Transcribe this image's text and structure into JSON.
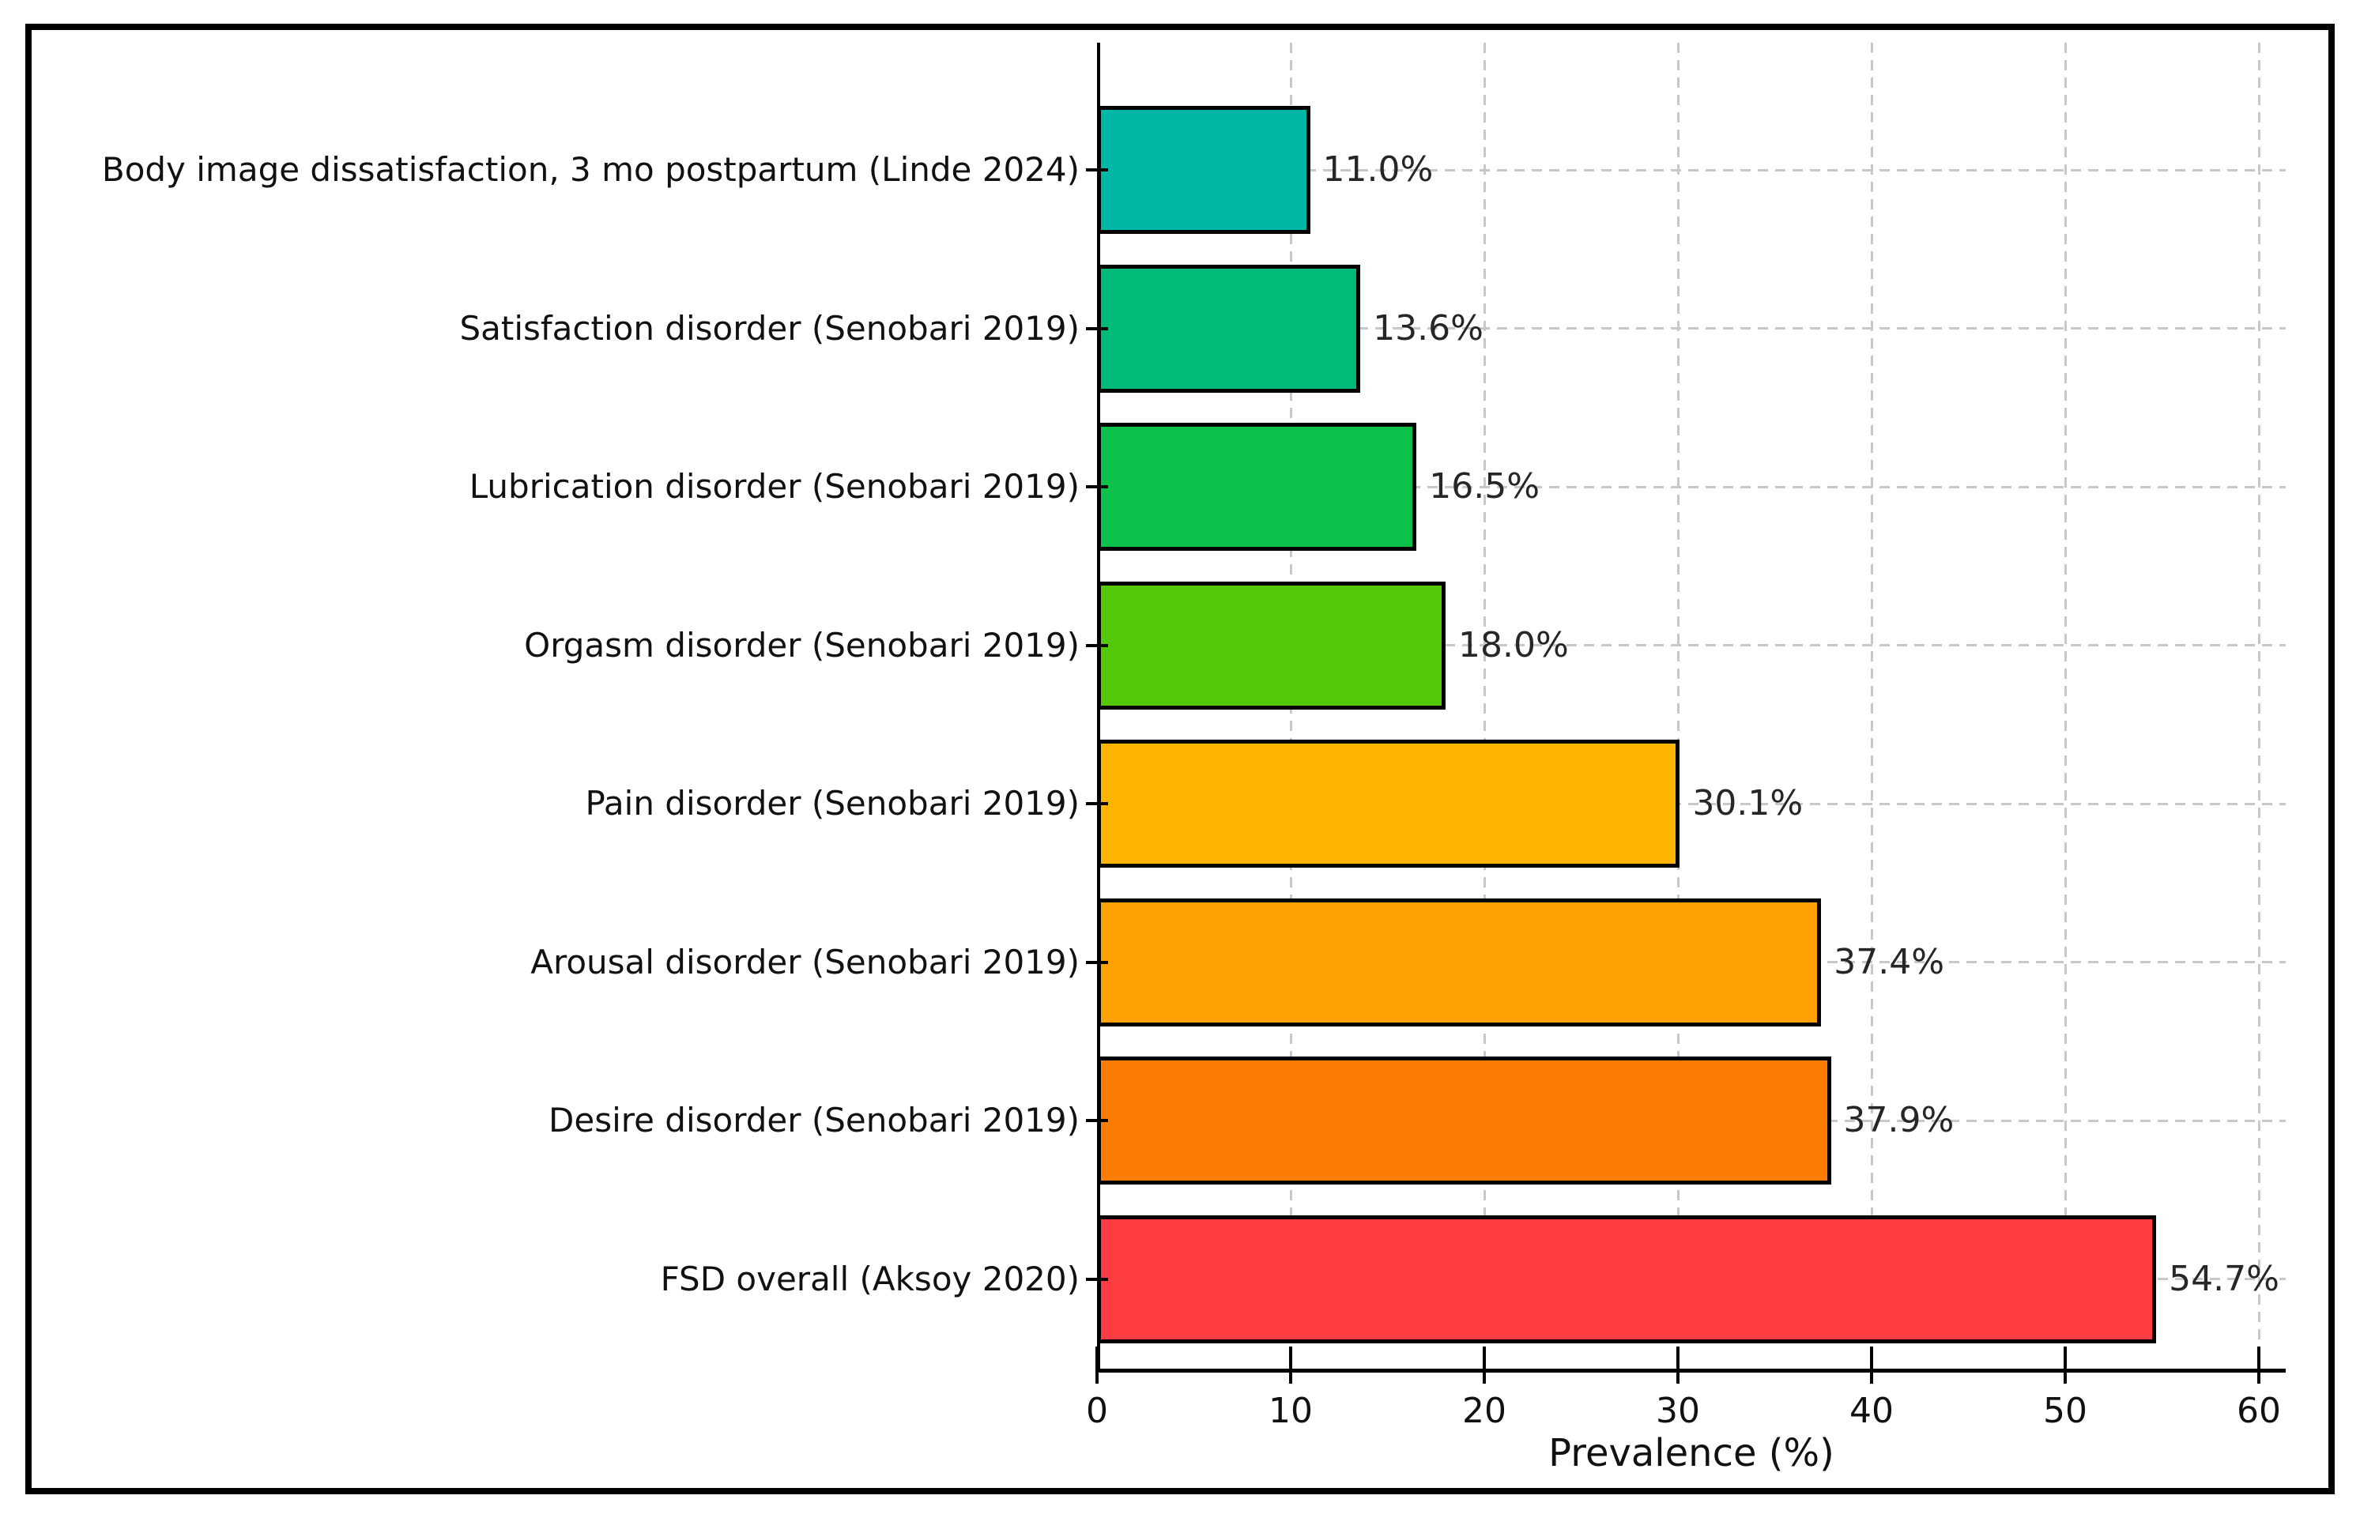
{
  "figure": {
    "background": "#ffffff",
    "border_color": "#000000"
  },
  "chart_data": {
    "type": "bar",
    "orientation": "horizontal",
    "title": "",
    "xlabel": "Prevalence (%)",
    "ylabel": "",
    "categories": [
      "Body image dissatisfaction, 3 mo postpartum (Linde 2024)",
      "Satisfaction disorder (Senobari 2019)",
      "Lubrication disorder (Senobari 2019)",
      "Orgasm disorder (Senobari 2019)",
      "Pain disorder (Senobari 2019)",
      "Arousal disorder (Senobari 2019)",
      "Desire disorder (Senobari 2019)",
      "FSD overall (Aksoy 2020)"
    ],
    "values": [
      11.0,
      13.6,
      16.5,
      18.0,
      30.1,
      37.4,
      37.9,
      54.7
    ],
    "value_labels": [
      "11.0%",
      "13.6%",
      "16.5%",
      "18.0%",
      "30.1%",
      "37.4%",
      "37.9%",
      "54.7%"
    ],
    "bar_colors": [
      "#00b6a4",
      "#00ba78",
      "#0cc24a",
      "#54c90a",
      "#ffb400",
      "#ffa103",
      "#fb7d05",
      "#fd3c42"
    ],
    "bar_edge_color": "#000000",
    "xticks": [
      0,
      10,
      20,
      30,
      40,
      50,
      60
    ],
    "xtick_labels": [
      "0",
      "10",
      "20",
      "30",
      "40",
      "50",
      "60"
    ],
    "xlim": [
      0,
      61.4
    ],
    "grid": {
      "style": "dashed",
      "color": "#c8c8c8",
      "axis": "both"
    },
    "legend": null
  }
}
